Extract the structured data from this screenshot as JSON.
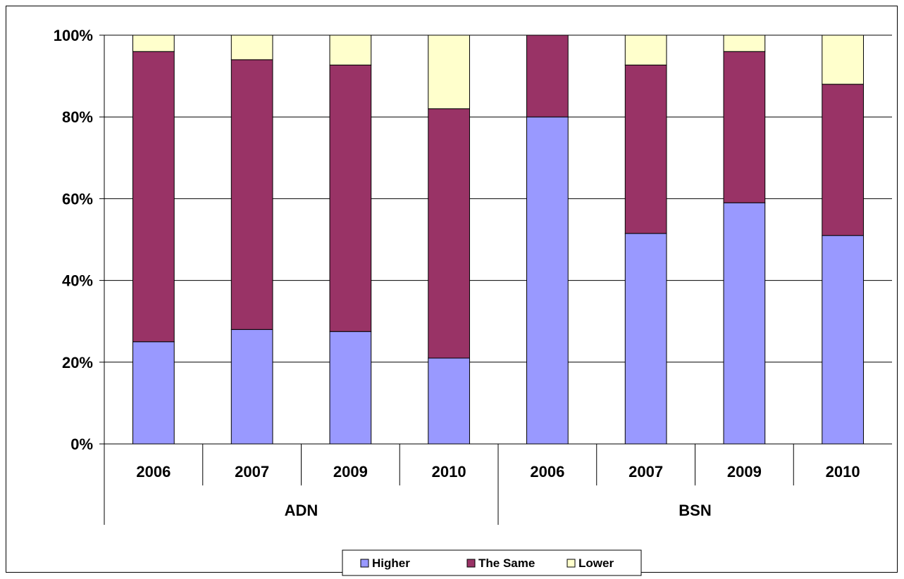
{
  "chart_data": {
    "type": "bar",
    "stacked": true,
    "percent_stacked": true,
    "title": "",
    "xlabel": "",
    "ylabel": "",
    "ylim": [
      0,
      100
    ],
    "y_ticks": [
      "0%",
      "20%",
      "40%",
      "60%",
      "80%",
      "100%"
    ],
    "grid": true,
    "legend_position": "bottom",
    "groups": [
      {
        "label": "ADN",
        "categories": [
          "2006",
          "2007",
          "2009",
          "2010"
        ]
      },
      {
        "label": "BSN",
        "categories": [
          "2006",
          "2007",
          "2009",
          "2010"
        ]
      }
    ],
    "series": [
      {
        "name": "Higher",
        "color": "#9999FF",
        "values": [
          25,
          28,
          27.5,
          21,
          80,
          51.5,
          59,
          51
        ]
      },
      {
        "name": "The Same",
        "color": "#993366",
        "values": [
          71,
          66,
          65.2,
          61,
          20,
          41.2,
          37,
          37
        ]
      },
      {
        "name": "Lower",
        "color": "#FFFFCC",
        "values": [
          4,
          6,
          7.3,
          18,
          0,
          7.3,
          4,
          12
        ]
      }
    ]
  }
}
